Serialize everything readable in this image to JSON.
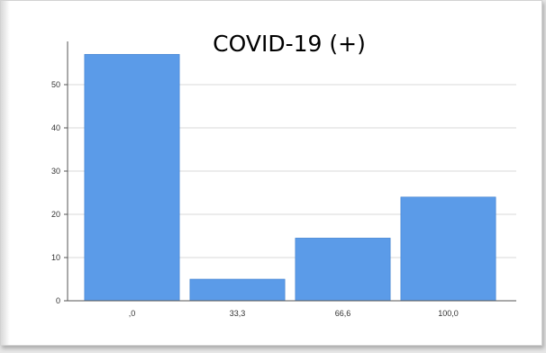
{
  "chart_data": {
    "type": "bar",
    "title": "COVID-19 (+)",
    "xlabel": "",
    "ylabel": "",
    "categories": [
      ",0",
      "33,3",
      "66,6",
      "100,0"
    ],
    "values": [
      57,
      5,
      14.5,
      24
    ],
    "ylim": [
      0,
      60
    ],
    "yticks": [
      "0",
      "10",
      "20",
      "30",
      "40",
      "50"
    ],
    "grid": true,
    "bar_color": "#5b9be8"
  }
}
